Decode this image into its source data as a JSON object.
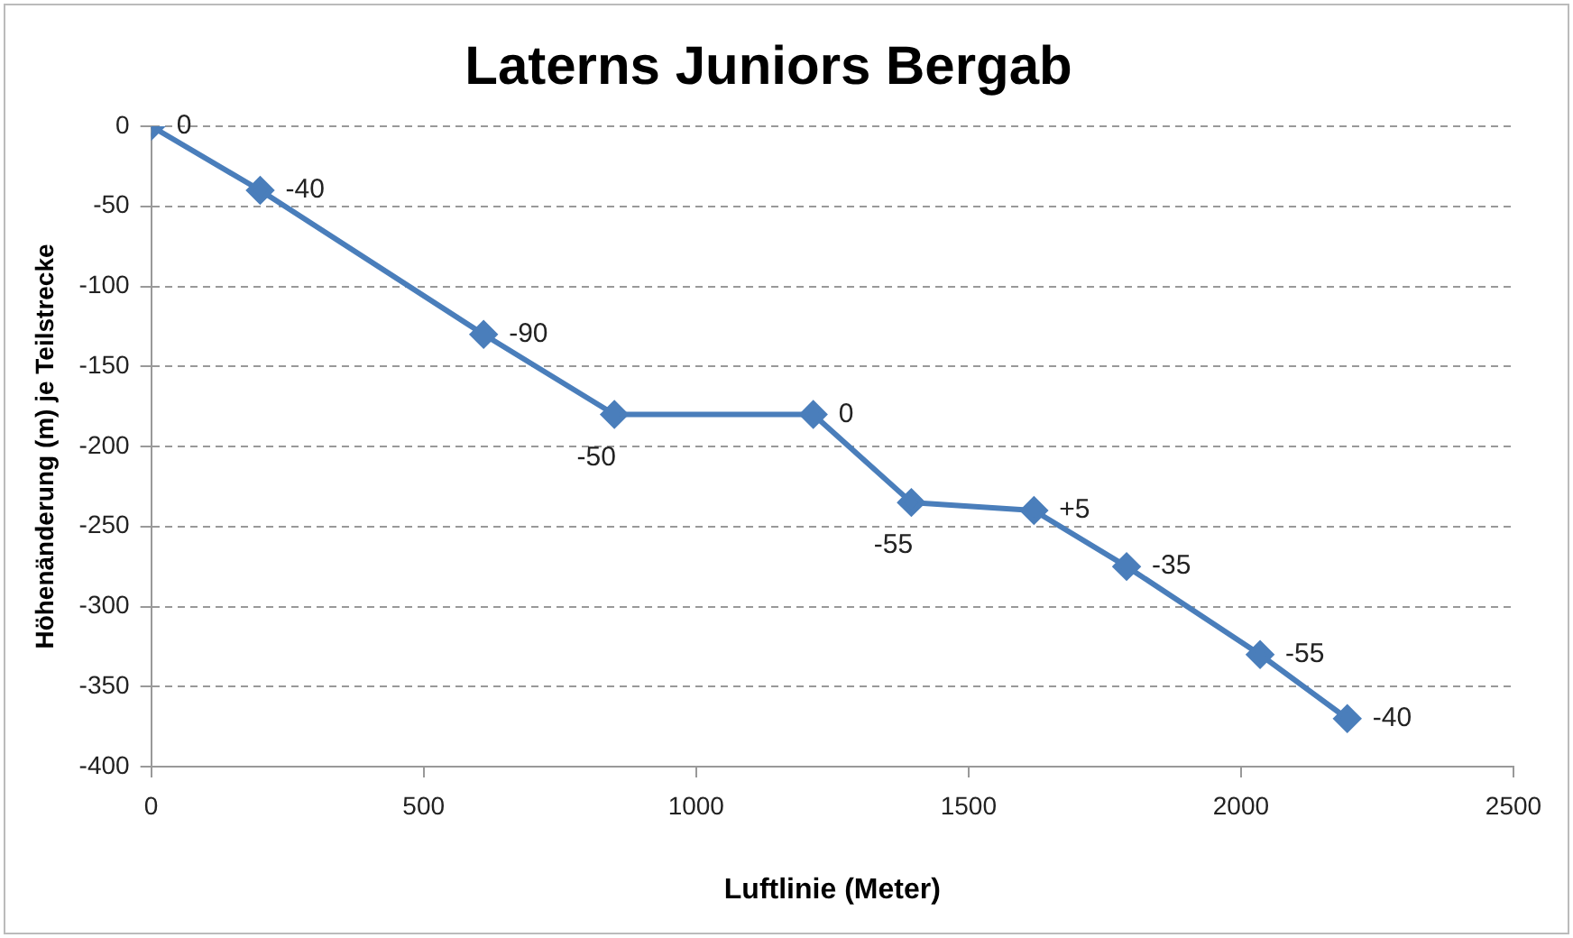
{
  "chart_data": {
    "type": "line",
    "title": "Laterns Juniors Bergab",
    "xlabel": "Luftlinie (Meter)",
    "ylabel": "Höhenänderung (m) je Teilstrecke",
    "x": [
      0,
      200,
      610,
      850,
      1215,
      1395,
      1620,
      1790,
      2035,
      2195
    ],
    "series": [
      {
        "color": "#4a7ebb",
        "values": [
          0,
          -40,
          -130,
          -180,
          -180,
          -235,
          -240,
          -275,
          -330,
          -370
        ]
      }
    ],
    "xlim": [
      0,
      2500
    ],
    "xticks": [
      0,
      500,
      1000,
      1500,
      2000,
      2500
    ],
    "ylim": [
      -400,
      0
    ],
    "yticks": [
      -400,
      -350,
      -300,
      -250,
      -200,
      -150,
      -100,
      -50,
      0
    ],
    "grid": "y",
    "legend": false,
    "marker": "diamond",
    "line_style": "solid",
    "annotations": [
      {
        "text": "0",
        "x": 0,
        "y": 0
      },
      {
        "text": "-40",
        "x": 200,
        "y": -40
      },
      {
        "text": "-90",
        "x": 610,
        "y": -130
      },
      {
        "text": "-50",
        "x": 850,
        "y": -180
      },
      {
        "text": "0",
        "x": 1215,
        "y": -180
      },
      {
        "text": "-55",
        "x": 1395,
        "y": -235
      },
      {
        "text": "+5",
        "x": 1620,
        "y": -240
      },
      {
        "text": "-35",
        "x": 1790,
        "y": -275
      },
      {
        "text": "-55",
        "x": 2035,
        "y": -330
      },
      {
        "text": "-40",
        "x": 2195,
        "y": -370
      }
    ]
  }
}
